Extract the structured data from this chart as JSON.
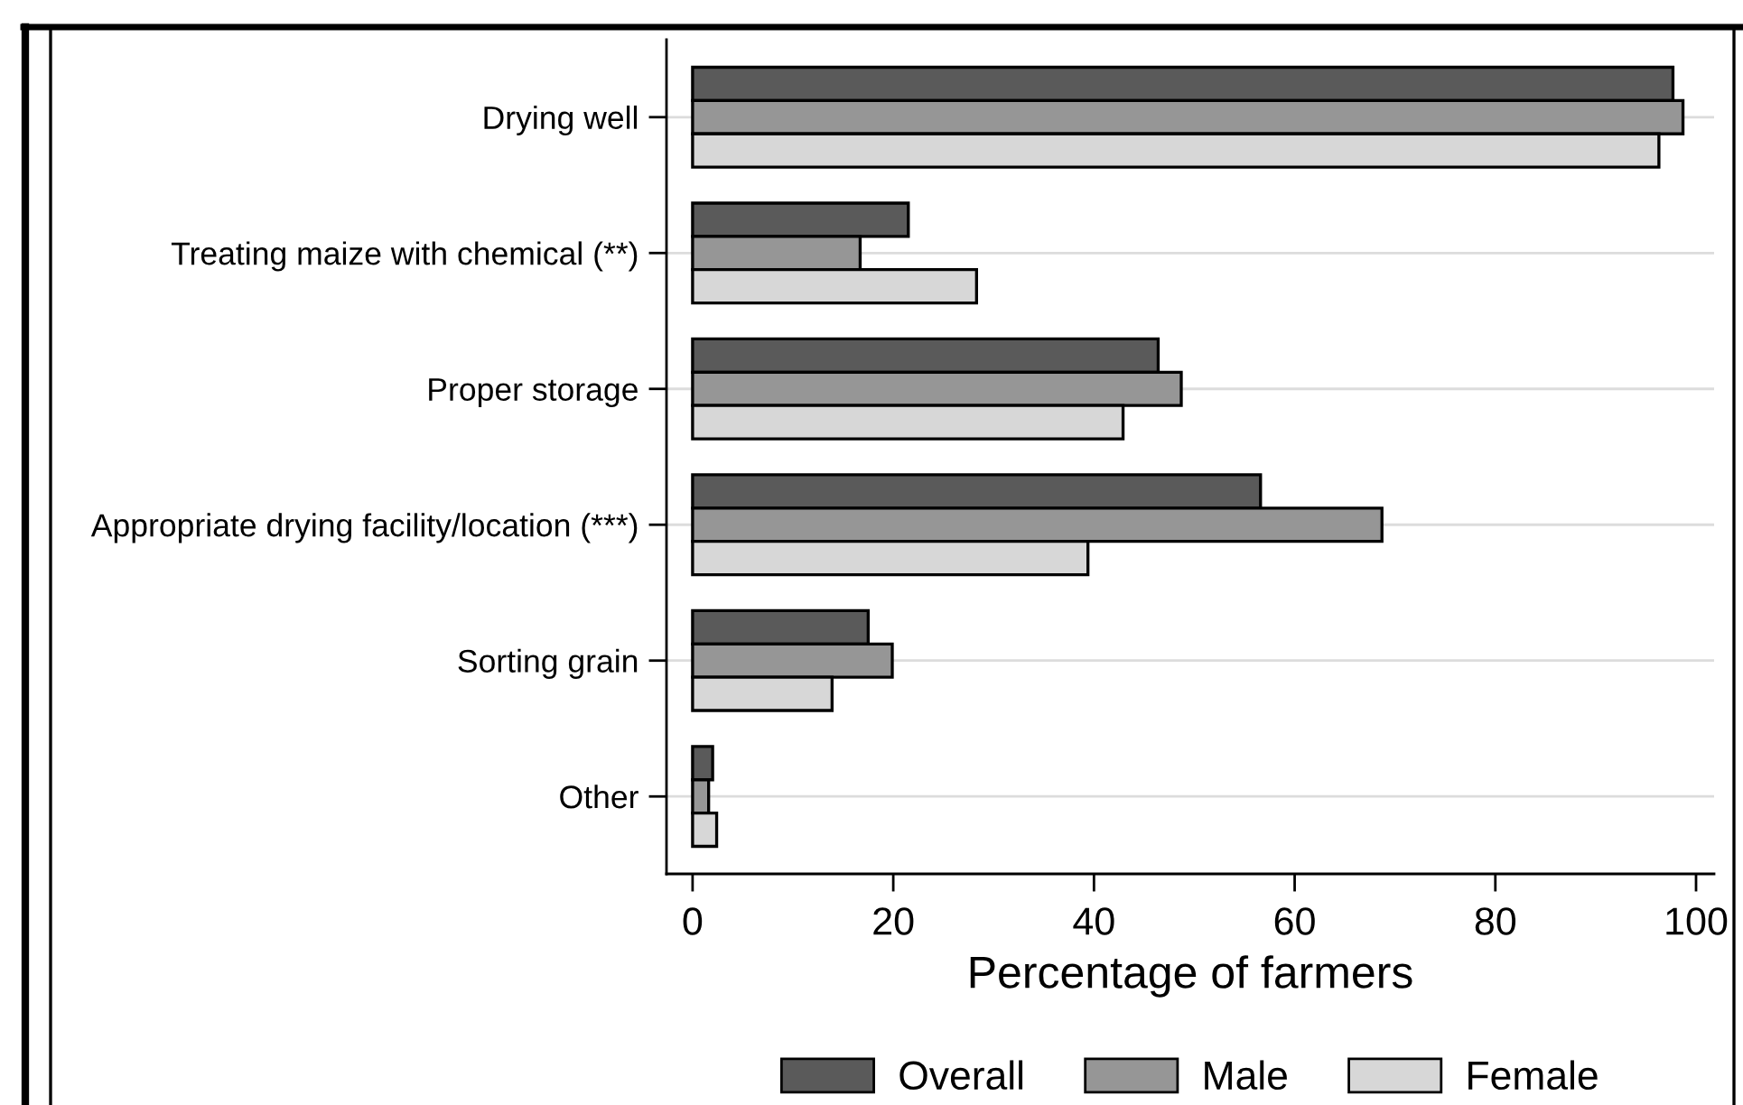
{
  "chart_data": {
    "type": "bar",
    "orientation": "horizontal",
    "categories": [
      "Drying well",
      "Treating maize with chemical (**)",
      "Proper storage",
      "Appropriate drying facility/location (***)",
      "Sorting grain",
      "Other"
    ],
    "series": [
      {
        "name": "Overall",
        "color": "#5a5a5a",
        "values": [
          97.7,
          21.5,
          46.4,
          56.6,
          17.5,
          2.0
        ]
      },
      {
        "name": "Male",
        "color": "#969696",
        "values": [
          98.7,
          16.7,
          48.7,
          68.7,
          19.9,
          1.6
        ]
      },
      {
        "name": "Female",
        "color": "#d7d7d7",
        "values": [
          96.3,
          28.3,
          42.9,
          39.4,
          13.9,
          2.4
        ]
      }
    ],
    "xlabel": "Percentage of farmers",
    "xlim": [
      -2.6,
      101.8
    ],
    "xticks": [
      0,
      20,
      40,
      60,
      80,
      100
    ],
    "grid": "y",
    "legend": "bottom"
  }
}
